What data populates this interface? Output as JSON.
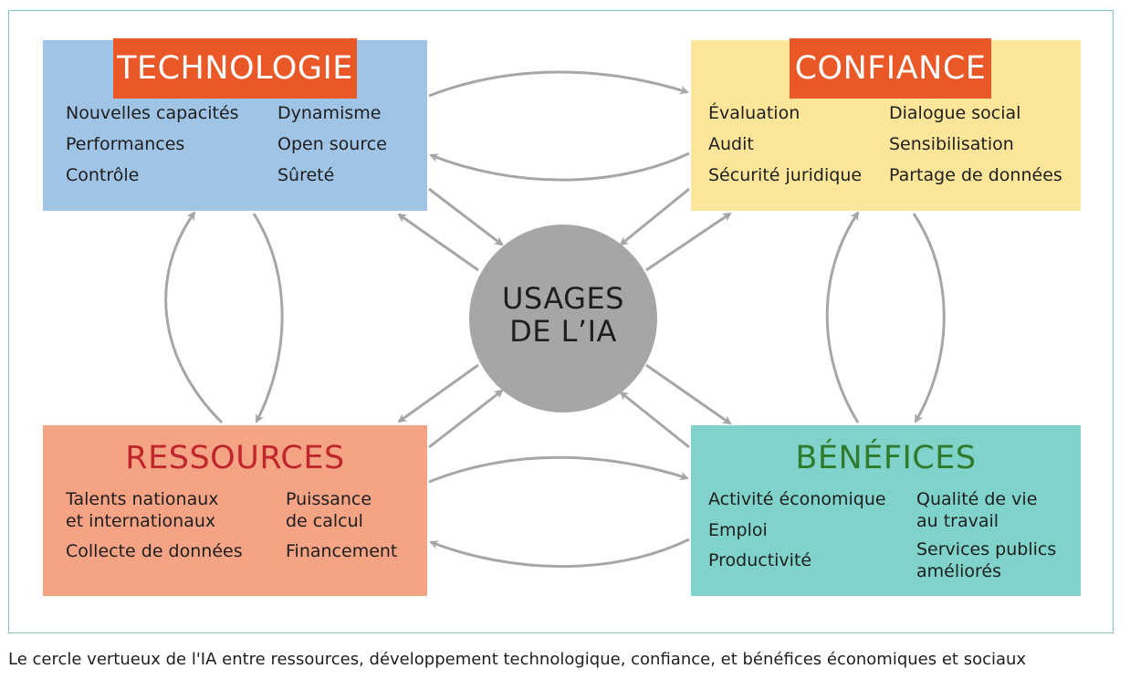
{
  "diagram": {
    "hub": {
      "line1": "USAGES",
      "line2": "DE L’IA"
    },
    "technologie": {
      "title": "TECHNOLOGIE",
      "items": [
        "Nouvelles capacités",
        "Performances",
        "Contrôle",
        "Dynamisme",
        "Open source",
        "Sûreté"
      ]
    },
    "confiance": {
      "title": "CONFIANCE",
      "items": [
        "Évaluation",
        "Audit",
        "Sécurité juridique",
        "Dialogue social",
        "Sensibilisation",
        "Partage de données"
      ]
    },
    "ressources": {
      "title": "RESSOURCES",
      "items": [
        "Talents nationaux",
        "et internationaux",
        "Collecte de données",
        "Puissance",
        "de calcul",
        "Financement"
      ]
    },
    "benefices": {
      "title": "BÉNÉFICES",
      "items": [
        "Activité économique",
        "Emploi",
        "Productivité",
        "Qualité de vie",
        "au travail",
        "Services publics",
        "améliorés"
      ]
    },
    "colors": {
      "technologie_fill": "#a0c4e6",
      "confiance_fill": "#fde59a",
      "ressources_fill": "#f4a384",
      "benefices_fill": "#7fd3ca",
      "title_tag": "#e95826",
      "ressources_title": "#c0272d",
      "benefices_title": "#2f7a2c",
      "hub_fill": "#a6a6a6",
      "arrow": "#a6a6a6",
      "frame": "#7fc4c1"
    }
  },
  "caption": "Le cercle vertueux de l'IA entre ressources, développement technologique, confiance, et bénéfices économiques et sociaux"
}
